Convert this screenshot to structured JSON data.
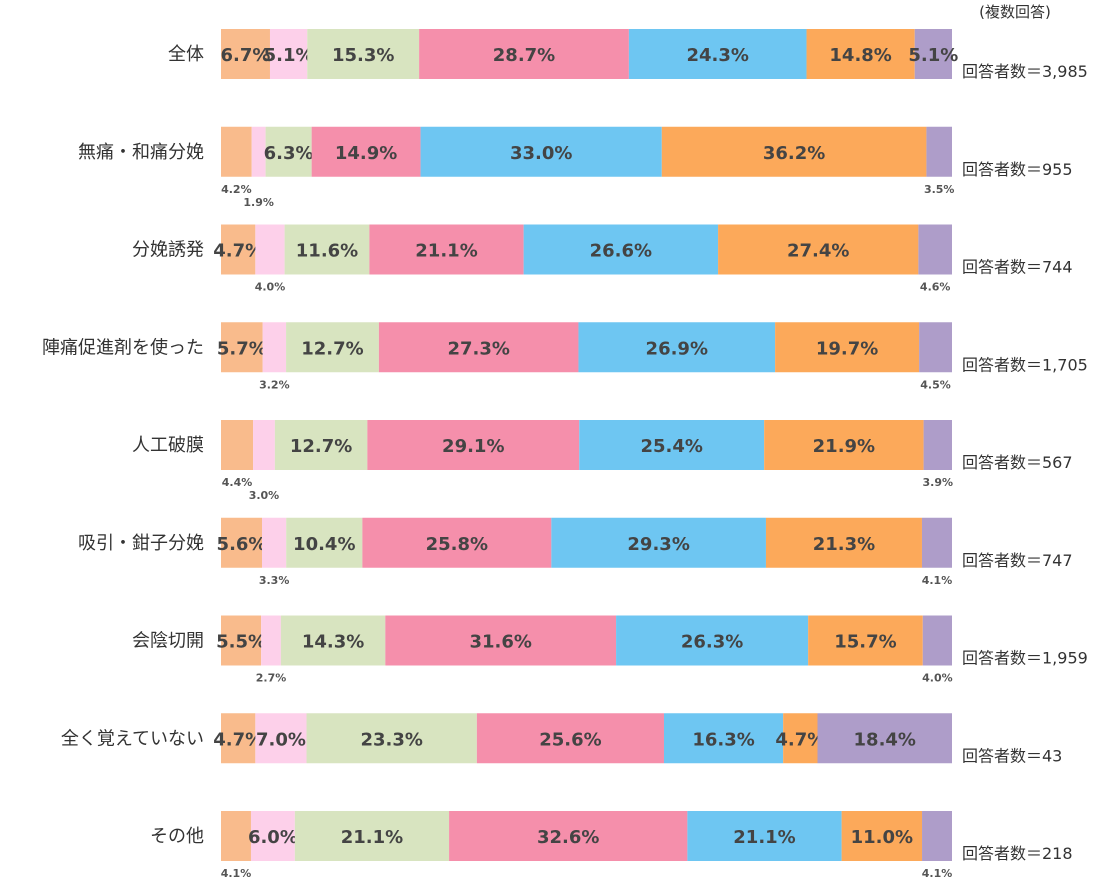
{
  "chart_data": {
    "type": "bar",
    "orientation": "horizontal",
    "stacked": true,
    "note": "(複数回答)",
    "categories": [
      "全体",
      "無痛・和痛分娩",
      "分娩誘発",
      "陣痛促進剤を使った",
      "人工破膜",
      "吸引・鉗子分娩",
      "会陰切開",
      "全く覚えていない",
      "その他"
    ],
    "counts": [
      "回答者数＝3,985",
      "回答者数＝955",
      "回答者数＝744",
      "回答者数＝1,705",
      "回答者数＝567",
      "回答者数＝747",
      "回答者数＝1,959",
      "回答者数＝43",
      "回答者数＝218"
    ],
    "series": [
      {
        "color": "#f9bb8c",
        "values": [
          6.7,
          4.2,
          4.7,
          5.7,
          4.4,
          5.6,
          5.5,
          4.7,
          4.1
        ]
      },
      {
        "color": "#fdd0ea",
        "values": [
          5.1,
          1.9,
          4.0,
          3.2,
          3.0,
          3.3,
          2.7,
          7.0,
          6.0
        ]
      },
      {
        "color": "#d8e4c0",
        "values": [
          15.3,
          6.3,
          11.6,
          12.7,
          12.7,
          10.4,
          14.3,
          23.3,
          21.1
        ]
      },
      {
        "color": "#f58fab",
        "values": [
          28.7,
          14.9,
          21.1,
          27.3,
          29.1,
          25.8,
          31.6,
          25.6,
          32.6
        ]
      },
      {
        "color": "#6ec6f2",
        "values": [
          24.3,
          33.0,
          26.6,
          26.9,
          25.4,
          29.3,
          26.3,
          16.3,
          21.1
        ]
      },
      {
        "color": "#fca95a",
        "values": [
          14.8,
          36.2,
          27.4,
          19.7,
          21.9,
          21.3,
          15.7,
          4.7,
          11.0
        ]
      },
      {
        "color": "#ae9dc9",
        "values": [
          5.1,
          3.5,
          4.6,
          4.5,
          3.9,
          4.1,
          4.0,
          18.4,
          4.1
        ]
      }
    ],
    "labels": [
      [
        "6.7%",
        "5.1%",
        "15.3%",
        "28.7%",
        "24.3%",
        "14.8%",
        "5.1%"
      ],
      [
        "4.2%",
        "1.9%",
        "6.3%",
        "14.9%",
        "33.0%",
        "36.2%",
        "3.5%"
      ],
      [
        "4.7%",
        "4.0%",
        "11.6%",
        "21.1%",
        "26.6%",
        "27.4%",
        "4.6%"
      ],
      [
        "5.7%",
        "3.2%",
        "12.7%",
        "27.3%",
        "26.9%",
        "19.7%",
        "4.5%"
      ],
      [
        "4.4%",
        "3.0%",
        "12.7%",
        "29.1%",
        "25.4%",
        "21.9%",
        "3.9%"
      ],
      [
        "5.6%",
        "3.3%",
        "10.4%",
        "25.8%",
        "29.3%",
        "21.3%",
        "4.1%"
      ],
      [
        "5.5%",
        "2.7%",
        "14.3%",
        "31.6%",
        "26.3%",
        "15.7%",
        "4.0%"
      ],
      [
        "4.7%",
        "7.0%",
        "23.3%",
        "25.6%",
        "16.3%",
        "4.7%",
        "18.4%"
      ],
      [
        "4.1%",
        "6.0%",
        "21.1%",
        "32.6%",
        "21.1%",
        "11.0%",
        "4.1%"
      ]
    ],
    "xlim": [
      0,
      100
    ],
    "grid": false,
    "legend": "none"
  }
}
